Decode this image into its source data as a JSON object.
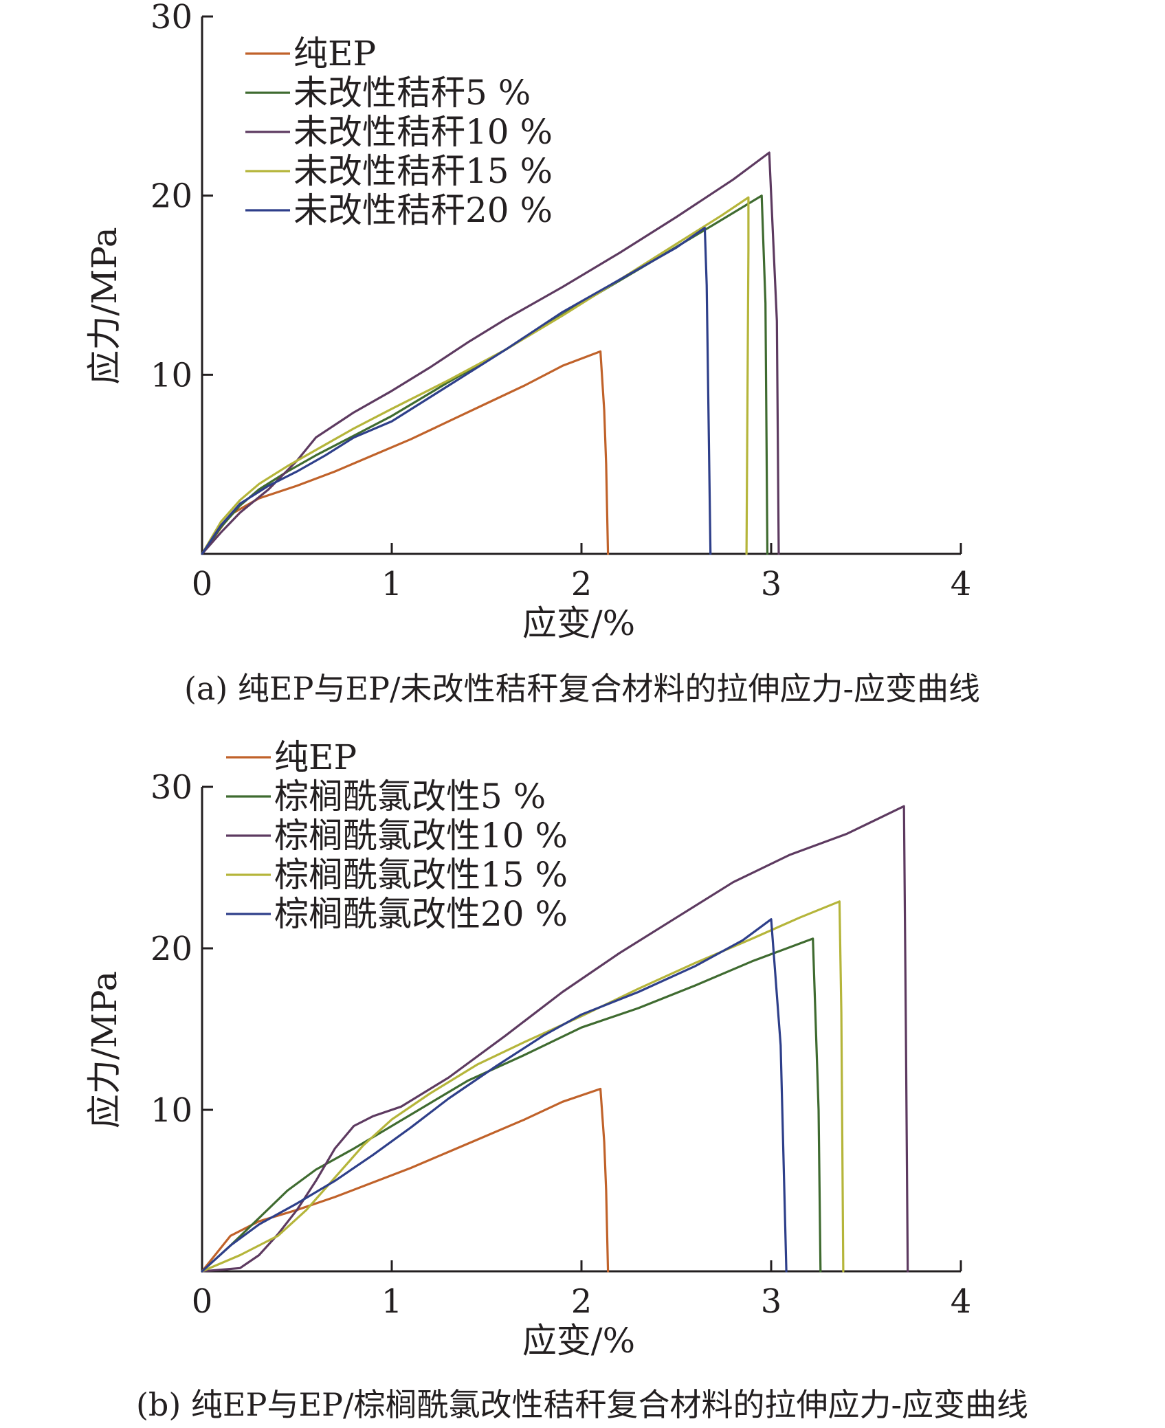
{
  "chart_data": [
    {
      "type": "line",
      "caption": "(a) 纯EP与EP/未改性秸秆复合材料的拉伸应力-应变曲线",
      "xlabel": "应变/%",
      "ylabel": "应力/MPa",
      "xlim": [
        0,
        4
      ],
      "ylim": [
        0,
        30
      ],
      "xticks": [
        "0",
        "1",
        "2",
        "3",
        "4"
      ],
      "yticks": [
        "10",
        "20",
        "30"
      ],
      "legend_position": "top-left",
      "series": [
        {
          "name": "纯EP",
          "color": "#c0622a",
          "points": [
            [
              0,
              0
            ],
            [
              0.15,
              2.2
            ],
            [
              0.3,
              3.1
            ],
            [
              0.5,
              3.8
            ],
            [
              0.7,
              4.6
            ],
            [
              0.9,
              5.5
            ],
            [
              1.1,
              6.4
            ],
            [
              1.3,
              7.4
            ],
            [
              1.5,
              8.4
            ],
            [
              1.7,
              9.4
            ],
            [
              1.9,
              10.5
            ],
            [
              2.1,
              11.3
            ],
            [
              2.12,
              8.0
            ],
            [
              2.13,
              5.0
            ],
            [
              2.14,
              0
            ]
          ]
        },
        {
          "name": "未改性秸秆5 %",
          "color": "#3f6b30",
          "points": [
            [
              0,
              0
            ],
            [
              0.1,
              1.5
            ],
            [
              0.2,
              2.7
            ],
            [
              0.3,
              3.6
            ],
            [
              0.45,
              4.6
            ],
            [
              0.6,
              5.5
            ],
            [
              0.8,
              6.6
            ],
            [
              1.0,
              7.7
            ],
            [
              1.3,
              9.6
            ],
            [
              1.6,
              11.4
            ],
            [
              2.0,
              14.0
            ],
            [
              2.4,
              16.5
            ],
            [
              2.7,
              18.4
            ],
            [
              2.95,
              20.0
            ],
            [
              2.97,
              14.0
            ],
            [
              2.98,
              0
            ]
          ]
        },
        {
          "name": "未改性秸秆10 %",
          "color": "#5d3a60",
          "points": [
            [
              0,
              0
            ],
            [
              0.1,
              1.2
            ],
            [
              0.2,
              2.3
            ],
            [
              0.35,
              3.6
            ],
            [
              0.5,
              5.2
            ],
            [
              0.6,
              6.5
            ],
            [
              0.8,
              7.9
            ],
            [
              1.0,
              9.1
            ],
            [
              1.2,
              10.4
            ],
            [
              1.4,
              11.8
            ],
            [
              1.6,
              13.1
            ],
            [
              1.9,
              14.9
            ],
            [
              2.2,
              16.8
            ],
            [
              2.5,
              18.8
            ],
            [
              2.8,
              20.9
            ],
            [
              2.99,
              22.4
            ],
            [
              3.03,
              13.0
            ],
            [
              3.04,
              0
            ]
          ]
        },
        {
          "name": "未改性秸秆15 %",
          "color": "#b5b53a",
          "points": [
            [
              0,
              0
            ],
            [
              0.1,
              1.8
            ],
            [
              0.2,
              3.0
            ],
            [
              0.3,
              3.9
            ],
            [
              0.45,
              4.9
            ],
            [
              0.6,
              5.8
            ],
            [
              0.8,
              7.0
            ],
            [
              1.0,
              8.1
            ],
            [
              1.3,
              9.7
            ],
            [
              1.6,
              11.4
            ],
            [
              1.9,
              13.3
            ],
            [
              2.2,
              15.3
            ],
            [
              2.5,
              17.3
            ],
            [
              2.74,
              18.9
            ],
            [
              2.88,
              19.9
            ],
            [
              2.88,
              17.0
            ],
            [
              2.87,
              0
            ]
          ]
        },
        {
          "name": "未改性秸秆20 %",
          "color": "#2e3f8a",
          "points": [
            [
              0,
              0
            ],
            [
              0.1,
              1.6
            ],
            [
              0.2,
              2.8
            ],
            [
              0.35,
              3.8
            ],
            [
              0.5,
              4.6
            ],
            [
              0.65,
              5.5
            ],
            [
              0.8,
              6.5
            ],
            [
              1.0,
              7.4
            ],
            [
              1.3,
              9.4
            ],
            [
              1.6,
              11.4
            ],
            [
              1.9,
              13.5
            ],
            [
              2.2,
              15.3
            ],
            [
              2.5,
              17.1
            ],
            [
              2.65,
              18.2
            ],
            [
              2.66,
              15.0
            ],
            [
              2.68,
              0
            ]
          ]
        }
      ]
    },
    {
      "type": "line",
      "caption": "(b) 纯EP与EP/棕榈酰氯改性秸秆复合材料的拉伸应力-应变曲线",
      "xlabel": "应变/%",
      "ylabel": "应力/MPa",
      "xlim": [
        0,
        4
      ],
      "ylim": [
        0,
        30
      ],
      "xticks": [
        "0",
        "1",
        "2",
        "3",
        "4"
      ],
      "yticks": [
        "10",
        "20",
        "30"
      ],
      "legend_position": "top-left",
      "series": [
        {
          "name": "纯EP",
          "color": "#c0622a",
          "points": [
            [
              0,
              0
            ],
            [
              0.15,
              2.2
            ],
            [
              0.3,
              3.1
            ],
            [
              0.5,
              3.8
            ],
            [
              0.7,
              4.6
            ],
            [
              0.9,
              5.5
            ],
            [
              1.1,
              6.4
            ],
            [
              1.3,
              7.4
            ],
            [
              1.5,
              8.4
            ],
            [
              1.7,
              9.4
            ],
            [
              1.9,
              10.5
            ],
            [
              2.1,
              11.3
            ],
            [
              2.12,
              8.0
            ],
            [
              2.13,
              5.0
            ],
            [
              2.14,
              0
            ]
          ]
        },
        {
          "name": "棕榈酰氯改性5 %",
          "color": "#3f6b30",
          "points": [
            [
              0,
              0
            ],
            [
              0.15,
              1.6
            ],
            [
              0.3,
              3.3
            ],
            [
              0.45,
              5.0
            ],
            [
              0.6,
              6.3
            ],
            [
              0.8,
              7.6
            ],
            [
              1.0,
              9.0
            ],
            [
              1.2,
              10.4
            ],
            [
              1.4,
              11.8
            ],
            [
              1.7,
              13.4
            ],
            [
              2.0,
              15.1
            ],
            [
              2.3,
              16.3
            ],
            [
              2.6,
              17.7
            ],
            [
              2.9,
              19.2
            ],
            [
              3.22,
              20.6
            ],
            [
              3.25,
              10.0
            ],
            [
              3.26,
              0
            ]
          ]
        },
        {
          "name": "棕榈酰氯改性10 %",
          "color": "#5d3a60",
          "points": [
            [
              0,
              0
            ],
            [
              0.2,
              0.2
            ],
            [
              0.3,
              1.0
            ],
            [
              0.4,
              2.3
            ],
            [
              0.5,
              3.8
            ],
            [
              0.6,
              5.6
            ],
            [
              0.7,
              7.6
            ],
            [
              0.8,
              9.0
            ],
            [
              0.9,
              9.6
            ],
            [
              1.05,
              10.2
            ],
            [
              1.3,
              12.0
            ],
            [
              1.6,
              14.6
            ],
            [
              1.9,
              17.3
            ],
            [
              2.2,
              19.7
            ],
            [
              2.5,
              21.9
            ],
            [
              2.8,
              24.1
            ],
            [
              3.1,
              25.8
            ],
            [
              3.4,
              27.1
            ],
            [
              3.7,
              28.8
            ],
            [
              3.71,
              15.0
            ],
            [
              3.72,
              0
            ]
          ]
        },
        {
          "name": "棕榈酰氯改性15 %",
          "color": "#b5b53a",
          "points": [
            [
              0,
              0
            ],
            [
              0.2,
              1.0
            ],
            [
              0.4,
              2.2
            ],
            [
              0.55,
              3.8
            ],
            [
              0.7,
              5.8
            ],
            [
              0.85,
              7.8
            ],
            [
              1.0,
              9.4
            ],
            [
              1.2,
              11.0
            ],
            [
              1.45,
              12.8
            ],
            [
              1.7,
              14.2
            ],
            [
              2.0,
              15.8
            ],
            [
              2.3,
              17.5
            ],
            [
              2.6,
              19.1
            ],
            [
              2.9,
              20.6
            ],
            [
              3.15,
              21.9
            ],
            [
              3.36,
              22.9
            ],
            [
              3.37,
              16.0
            ],
            [
              3.38,
              0
            ]
          ]
        },
        {
          "name": "棕榈酰氯改性20 %",
          "color": "#2e3f8a",
          "points": [
            [
              0,
              0
            ],
            [
              0.15,
              1.6
            ],
            [
              0.3,
              2.9
            ],
            [
              0.5,
              4.2
            ],
            [
              0.7,
              5.6
            ],
            [
              0.9,
              7.2
            ],
            [
              1.1,
              8.9
            ],
            [
              1.3,
              10.7
            ],
            [
              1.55,
              12.7
            ],
            [
              1.8,
              14.6
            ],
            [
              2.0,
              15.9
            ],
            [
              2.3,
              17.3
            ],
            [
              2.6,
              18.9
            ],
            [
              2.85,
              20.5
            ],
            [
              3.0,
              21.8
            ],
            [
              3.05,
              14.0
            ],
            [
              3.08,
              0
            ]
          ]
        }
      ]
    }
  ]
}
